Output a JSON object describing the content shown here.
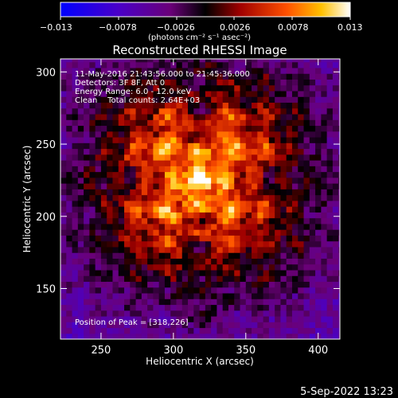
{
  "colorbar": {
    "min": -0.013,
    "max": 0.013,
    "tick_labels": [
      "−0.013",
      "−0.0078",
      "−0.0026",
      "0.0026",
      "0.0078",
      "0.013"
    ],
    "unit_label": "(photons cm⁻² s⁻¹ asec⁻²)"
  },
  "chart_data": {
    "type": "heatmap",
    "title": "Reconstructed RHESSI Image",
    "xlabel": "Heliocentric X (arcsec)",
    "ylabel": "Heliocentric Y (arcsec)",
    "xlim": [
      222,
      415
    ],
    "ylim": [
      115,
      309
    ],
    "xticks": [
      250,
      300,
      350,
      400
    ],
    "yticks": [
      150,
      200,
      250,
      300
    ],
    "peak": {
      "x": 318,
      "y": 226
    },
    "annotations": [
      "11-May-2016 21:43:56.000 to 21:45:36.000",
      "Detectors: 3F 8F, Att 0",
      "Energy Range: 6.0 - 12.0 keV",
      "Clean    Total counts: 2.64E+03"
    ],
    "peak_label": "Position of Peak = [318,226]",
    "colorscale": "rainbow-blue-to-white",
    "grid": false
  },
  "footer": {
    "date": "5-Sep-2022 13:23"
  }
}
